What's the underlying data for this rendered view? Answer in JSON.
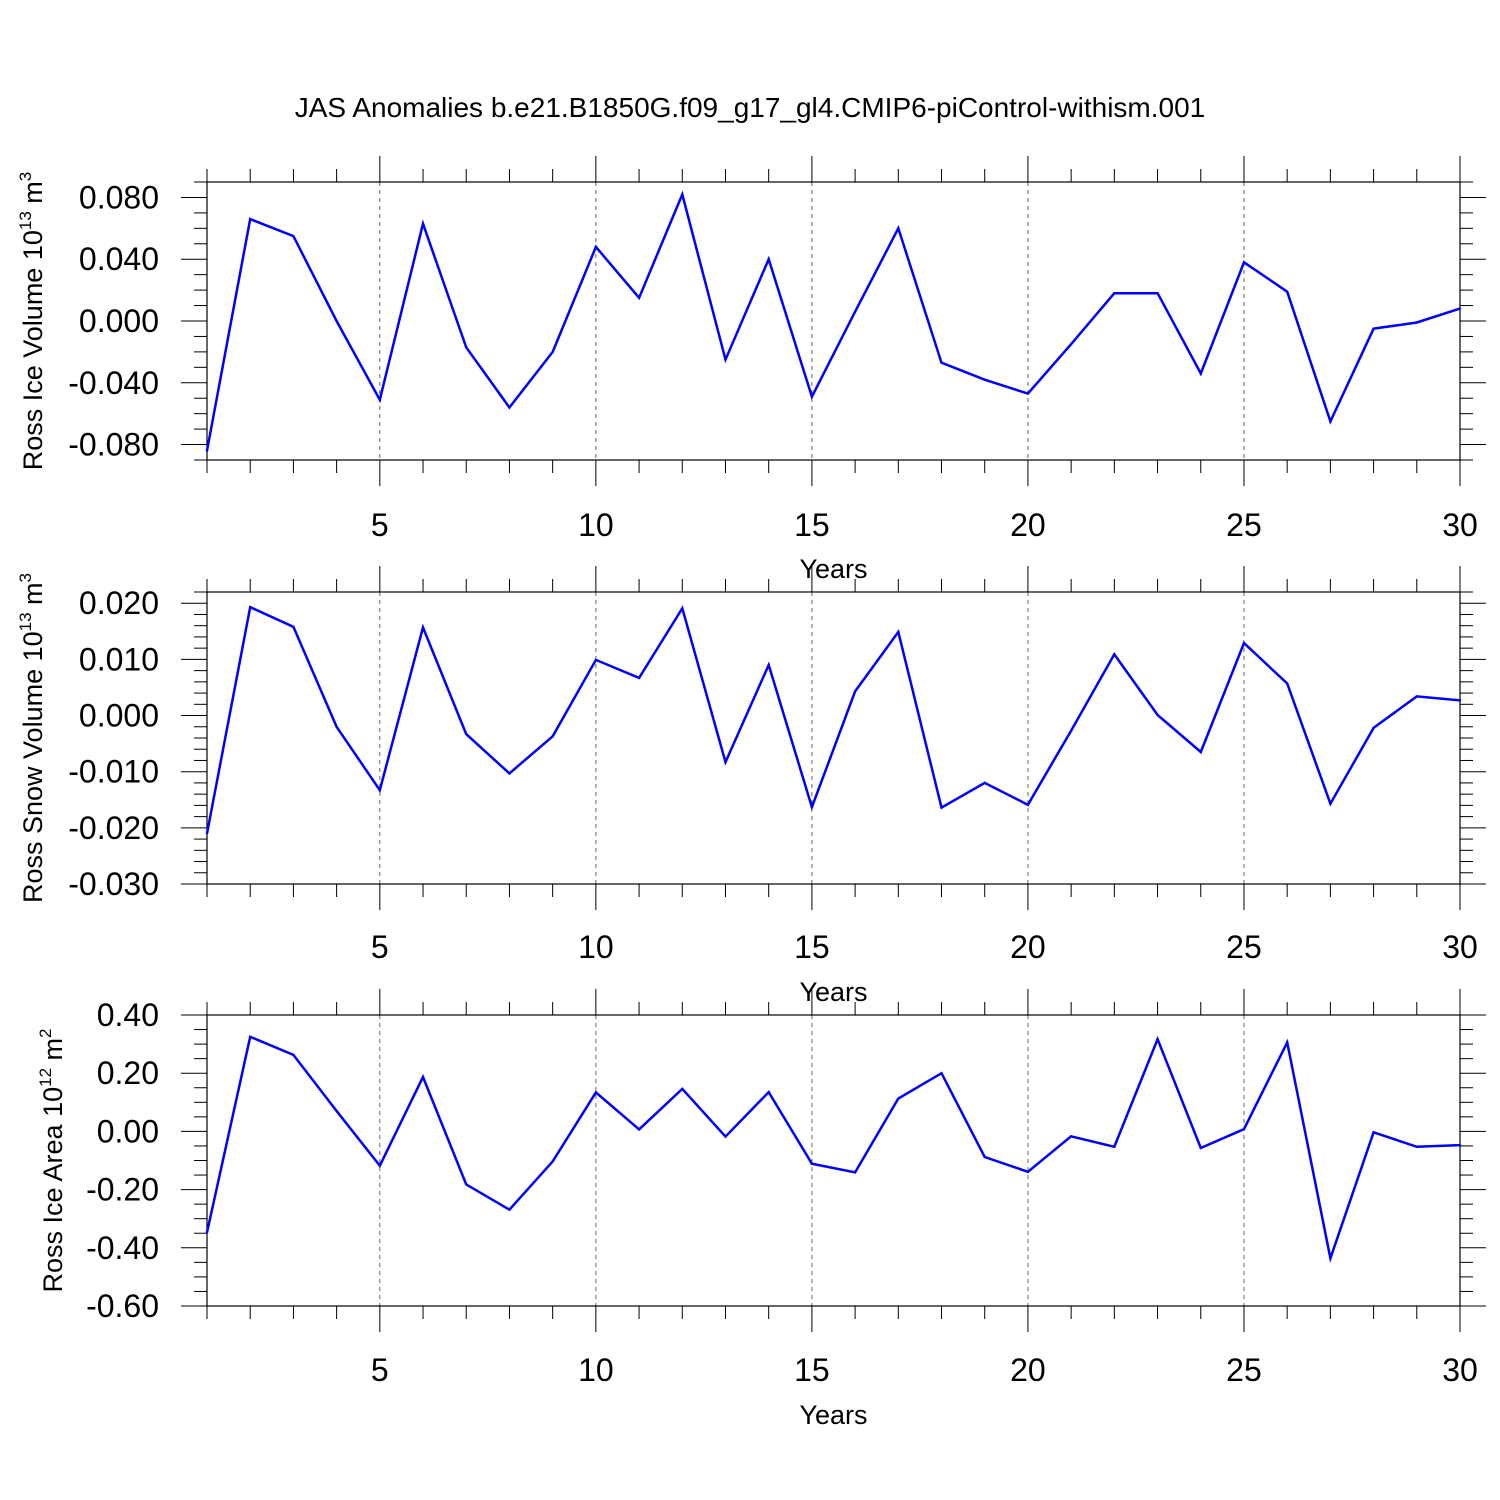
{
  "title": "JAS Anomalies b.e21.B1850G.f09_g17_gl4.CMIP6-piControl-withism.001",
  "colors": {
    "line": "#0000ff",
    "axis": "#000000",
    "grid": "#666666"
  },
  "chart_data": [
    {
      "type": "line",
      "xlabel": "Years",
      "ylabel": {
        "text": "Ross Ice Volume 10",
        "sup": "13",
        "unit": " m",
        "unit_sup": "3"
      },
      "xlim": [
        1,
        30
      ],
      "ylim": [
        -0.09,
        0.09
      ],
      "xticks": [
        5,
        10,
        15,
        20,
        25,
        30
      ],
      "xtick_labels": [
        "5",
        "10",
        "15",
        "20",
        "25",
        "30"
      ],
      "yticks": [
        -0.08,
        -0.04,
        0.0,
        0.04,
        0.08
      ],
      "ytick_labels": [
        "-0.080",
        "-0.040",
        "0.000",
        "0.040",
        "0.080"
      ],
      "yminor_step": 0.01,
      "grid": "vertical dashed at major x ticks",
      "x": [
        1,
        2,
        3,
        4,
        5,
        6,
        7,
        8,
        9,
        10,
        11,
        12,
        13,
        14,
        15,
        16,
        17,
        18,
        19,
        20,
        21,
        22,
        23,
        24,
        25,
        26,
        27,
        28,
        29,
        30
      ],
      "values": [
        -0.084,
        0.066,
        0.055,
        0.0,
        -0.051,
        0.063,
        -0.017,
        -0.056,
        -0.02,
        0.048,
        0.015,
        0.082,
        -0.025,
        0.04,
        -0.049,
        0.006,
        0.06,
        -0.027,
        -0.038,
        -0.047,
        -0.015,
        0.018,
        0.018,
        -0.034,
        0.038,
        0.019,
        -0.065,
        -0.005,
        -0.001,
        0.008
      ]
    },
    {
      "type": "line",
      "xlabel": "Years",
      "ylabel": {
        "text": "Ross Snow Volume 10",
        "sup": "13",
        "unit": " m",
        "unit_sup": "3"
      },
      "xlim": [
        1,
        30
      ],
      "ylim": [
        -0.03,
        0.022
      ],
      "xticks": [
        5,
        10,
        15,
        20,
        25,
        30
      ],
      "xtick_labels": [
        "5",
        "10",
        "15",
        "20",
        "25",
        "30"
      ],
      "yticks": [
        -0.03,
        -0.02,
        -0.01,
        0.0,
        0.01,
        0.02
      ],
      "ytick_labels": [
        "-0.030",
        "-0.020",
        "-0.010",
        "0.000",
        "0.010",
        "0.020"
      ],
      "yminor_step": 0.002,
      "grid": "vertical dashed at major x ticks",
      "x": [
        1,
        2,
        3,
        4,
        5,
        6,
        7,
        8,
        9,
        10,
        11,
        12,
        13,
        14,
        15,
        16,
        17,
        18,
        19,
        20,
        21,
        22,
        23,
        24,
        25,
        26,
        27,
        28,
        29,
        30
      ],
      "values": [
        -0.021,
        0.0193,
        0.0158,
        -0.002,
        -0.0133,
        0.0157,
        -0.0033,
        -0.0103,
        -0.0037,
        0.0099,
        0.0067,
        0.0191,
        -0.0083,
        0.009,
        -0.0163,
        0.0043,
        0.0149,
        -0.0164,
        -0.012,
        -0.0159,
        -0.0027,
        0.0109,
        0.0001,
        -0.0065,
        0.0129,
        0.0057,
        -0.0157,
        -0.0022,
        0.0034,
        0.0027
      ]
    },
    {
      "type": "line",
      "xlabel": "Years",
      "ylabel": {
        "text": "Ross Ice Area 10",
        "sup": "12",
        "unit": " m",
        "unit_sup": "2"
      },
      "xlim": [
        1,
        30
      ],
      "ylim": [
        -0.6,
        0.4
      ],
      "xticks": [
        5,
        10,
        15,
        20,
        25,
        30
      ],
      "xtick_labels": [
        "5",
        "10",
        "15",
        "20",
        "25",
        "30"
      ],
      "yticks": [
        -0.6,
        -0.4,
        -0.2,
        0.0,
        0.2,
        0.4
      ],
      "ytick_labels": [
        "-0.60",
        "-0.40",
        "-0.20",
        "0.00",
        "0.20",
        "0.40"
      ],
      "yminor_step": 0.05,
      "grid": "vertical dashed at major x ticks",
      "x": [
        1,
        2,
        3,
        4,
        5,
        6,
        7,
        8,
        9,
        10,
        11,
        12,
        13,
        14,
        15,
        16,
        17,
        18,
        19,
        20,
        21,
        22,
        23,
        24,
        25,
        26,
        27,
        28,
        29,
        30
      ],
      "values": [
        -0.347,
        0.325,
        0.263,
        0.07,
        -0.118,
        0.187,
        -0.182,
        -0.269,
        -0.103,
        0.134,
        0.007,
        0.146,
        -0.018,
        0.135,
        -0.111,
        -0.141,
        0.113,
        0.2,
        -0.088,
        -0.139,
        -0.017,
        -0.053,
        0.317,
        -0.057,
        0.008,
        0.306,
        -0.436,
        -0.003,
        -0.053,
        -0.047
      ]
    }
  ]
}
